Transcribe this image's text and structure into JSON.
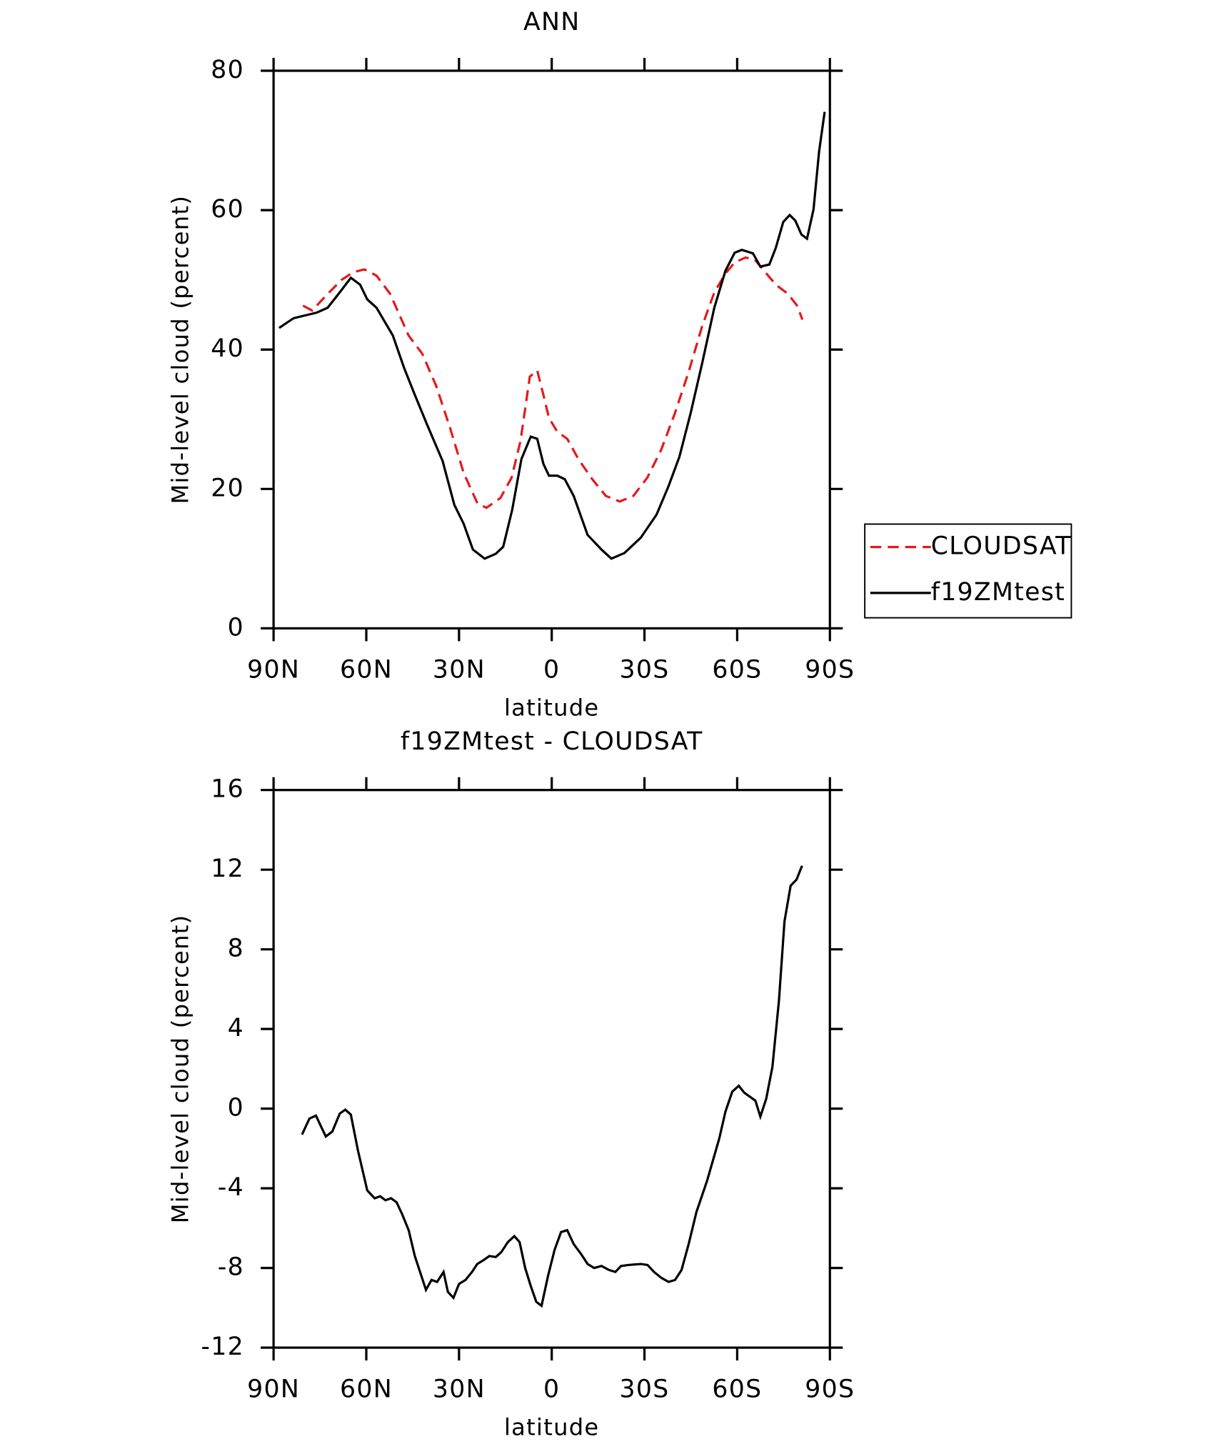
{
  "chart_data": [
    {
      "type": "line",
      "title": "ANN",
      "xlabel": "latitude",
      "ylabel": "Mid-level cloud (percent)",
      "xlim": [
        90,
        -90
      ],
      "xticks": [
        {
          "value": 90,
          "label": "90N"
        },
        {
          "value": 60,
          "label": "60N"
        },
        {
          "value": 30,
          "label": "30N"
        },
        0,
        {
          "value": -30,
          "label": "30S"
        },
        {
          "value": -60,
          "label": "60S"
        },
        {
          "value": -90,
          "label": "90S"
        }
      ],
      "ylim": [
        0,
        80
      ],
      "yticks": [
        0,
        20,
        40,
        60,
        80
      ],
      "legend": "right",
      "series": [
        {
          "name": "CLOUDSAT",
          "color": "#e31a1c",
          "dash": true,
          "x": [
            80.5,
            77.5,
            73.1,
            68,
            64.2,
            60.6,
            56.7,
            52.3,
            46.3,
            41.9,
            37.4,
            33,
            28.5,
            24,
            21.1,
            16.6,
            13,
            10.1,
            7.1,
            4.7,
            2.7,
            0.9,
            -1.8,
            -5,
            -8.6,
            -13.1,
            -17.5,
            -22,
            -26.4,
            -30.9,
            -35.4,
            -39.8,
            -44.3,
            -48.7,
            -52.6,
            -56.2,
            -59.2,
            -62.7,
            -65.7,
            -68.7,
            -72.5,
            -76.4,
            -79.4,
            -81.1
          ],
          "values": [
            46.3,
            45.6,
            47.7,
            50,
            51.1,
            51.5,
            50.6,
            48,
            42,
            39.4,
            34.8,
            28.9,
            22.3,
            17.9,
            17.3,
            18.7,
            21.6,
            26.9,
            36.1,
            37,
            33.5,
            30.2,
            28.2,
            27.2,
            24.3,
            21.4,
            19,
            18.2,
            19,
            21.6,
            25.6,
            30.8,
            36.8,
            43.4,
            48.2,
            50.9,
            52.5,
            53.2,
            52.9,
            51.3,
            49.3,
            48,
            46.3,
            44.3
          ]
        },
        {
          "name": "f19ZMtest",
          "color": "#000000",
          "dash": false,
          "x": [
            88.2,
            83.5,
            76,
            72.5,
            68.6,
            65,
            62,
            59.7,
            56.7,
            51.4,
            47.8,
            44.3,
            40.4,
            35.3,
            31.5,
            28.5,
            25.5,
            21.7,
            18.1,
            15.7,
            12.8,
            9.8,
            6.8,
            4.7,
            2.7,
            0.9,
            -1.8,
            -4.2,
            -7.1,
            -11.6,
            -16.1,
            -19.3,
            -23.5,
            -28.8,
            -33.9,
            -37.7,
            -41.3,
            -44.9,
            -48.7,
            -52.6,
            -56.2,
            -59.2,
            -61.5,
            -65.1,
            -67.5,
            -70.4,
            -72.5,
            -74.9,
            -77,
            -78.8,
            -80.8,
            -82.6,
            -84.7,
            -86.5,
            -88.3
          ],
          "values": [
            43.1,
            44.5,
            45.3,
            46,
            48.2,
            50.3,
            49.3,
            47.2,
            46,
            42,
            37.4,
            33.5,
            29.3,
            24,
            17.7,
            15,
            11.3,
            10,
            10.7,
            11.7,
            17,
            24.3,
            27.5,
            27.2,
            23.6,
            21.9,
            21.9,
            21.4,
            19,
            13.4,
            11.3,
            10,
            10.8,
            13,
            16.3,
            20.3,
            24.6,
            30.8,
            38.1,
            46,
            51.3,
            53.9,
            54.3,
            53.8,
            51.9,
            52.2,
            54.6,
            58.3,
            59.3,
            58.5,
            56.5,
            55.9,
            60.1,
            68.4,
            74.1
          ]
        }
      ]
    },
    {
      "type": "line",
      "title": "f19ZMtest - CLOUDSAT",
      "xlabel": "latitude",
      "ylabel": "Mid-level cloud (percent)",
      "xlim": [
        90,
        -90
      ],
      "xticks": [
        {
          "value": 90,
          "label": "90N"
        },
        {
          "value": 60,
          "label": "60N"
        },
        {
          "value": 30,
          "label": "30N"
        },
        0,
        {
          "value": -30,
          "label": "30S"
        },
        {
          "value": -60,
          "label": "60S"
        },
        {
          "value": -90,
          "label": "90S"
        }
      ],
      "ylim": [
        -12,
        16
      ],
      "yticks": [
        -12,
        -8,
        -4,
        0,
        4,
        8,
        12,
        16
      ],
      "series": [
        {
          "color": "#000000",
          "dash": false,
          "x": [
            80.8,
            78.4,
            76.3,
            73.1,
            71,
            68.6,
            66.8,
            65,
            62.7,
            59.7,
            57.3,
            55.5,
            53.8,
            52,
            50.2,
            48.4,
            46.3,
            44.3,
            40.7,
            38.9,
            37.1,
            35,
            33.6,
            31.8,
            30,
            27.9,
            25.8,
            24.1,
            22,
            20.2,
            18.1,
            16.3,
            14.2,
            12.1,
            10.4,
            8.6,
            6.8,
            5,
            3.3,
            1.2,
            -0.9,
            -3,
            -5,
            -7.1,
            -9.5,
            -11.6,
            -13.7,
            -16.1,
            -18.5,
            -20.6,
            -22.4,
            -24.8,
            -28.9,
            -31,
            -33.1,
            -35.5,
            -37.8,
            -39.9,
            -42,
            -44.3,
            -46.8,
            -50.3,
            -54.2,
            -56.2,
            -58.4,
            -60.5,
            -62.3,
            -65.9,
            -67.5,
            -69.4,
            -71.4,
            -73.5,
            -75.3,
            -77.3,
            -79.2,
            -81
          ],
          "values": [
            -1.3,
            -0.5,
            -0.35,
            -1.4,
            -1.15,
            -0.25,
            -0.05,
            -0.3,
            -2.1,
            -4.1,
            -4.5,
            -4.4,
            -4.6,
            -4.5,
            -4.7,
            -5.3,
            -6.1,
            -7.4,
            -9.1,
            -8.6,
            -8.7,
            -8.2,
            -9.2,
            -9.5,
            -8.8,
            -8.6,
            -8.2,
            -7.8,
            -7.6,
            -7.4,
            -7.45,
            -7.2,
            -6.7,
            -6.4,
            -6.7,
            -8,
            -8.9,
            -9.7,
            -9.9,
            -8.4,
            -7.1,
            -6.2,
            -6.1,
            -6.8,
            -7.3,
            -7.8,
            -8,
            -7.9,
            -8.1,
            -8.2,
            -7.9,
            -7.85,
            -7.8,
            -7.85,
            -8.2,
            -8.5,
            -8.7,
            -8.6,
            -8.1,
            -6.8,
            -5.2,
            -3.6,
            -1.5,
            -0.15,
            0.85,
            1.15,
            0.8,
            0.4,
            -0.4,
            0.5,
            2.1,
            5.4,
            9.4,
            11.2,
            11.5,
            12.2
          ]
        }
      ]
    }
  ]
}
